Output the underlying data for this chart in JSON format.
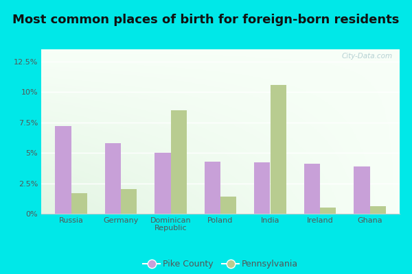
{
  "title": "Most common places of birth for foreign-born residents",
  "categories": [
    "Russia",
    "Germany",
    "Dominican\nRepublic",
    "Poland",
    "India",
    "Ireland",
    "Ghana"
  ],
  "pike_county": [
    7.2,
    5.8,
    5.0,
    4.3,
    4.2,
    4.1,
    3.9
  ],
  "pennsylvania": [
    1.7,
    2.0,
    8.5,
    1.4,
    10.6,
    0.5,
    0.6
  ],
  "pike_color": "#c8a0d8",
  "pa_color": "#b8cc90",
  "ylim": [
    0,
    13.5
  ],
  "yticks": [
    0,
    2.5,
    5.0,
    7.5,
    10.0,
    12.5
  ],
  "ytick_labels": [
    "0%",
    "2.5%",
    "5%",
    "7.5%",
    "10%",
    "12.5%"
  ],
  "bg_outer": "#00e8e8",
  "legend_pike": "Pike County",
  "legend_pa": "Pennsylvania",
  "watermark": "City-Data.com",
  "bar_width": 0.32,
  "title_fontsize": 13,
  "title_color": "#111111"
}
